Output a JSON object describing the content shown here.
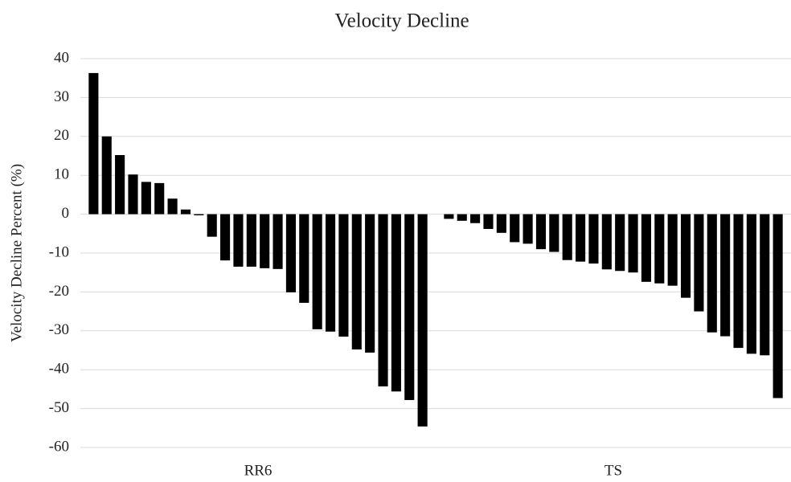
{
  "chart_data": {
    "type": "bar",
    "title": "Velocity Decline",
    "y_label": "Velocity Decline Percent (%)",
    "color": "#000000",
    "ylim": [
      -60,
      40
    ],
    "yticks": [
      -60,
      -50,
      -40,
      -30,
      -20,
      -10,
      0,
      10,
      20,
      30,
      40
    ],
    "grid": true,
    "groups": [
      {
        "name": "RR6",
        "values": [
          36.3,
          20.0,
          15.2,
          10.2,
          8.3,
          8.0,
          4.0,
          1.2,
          -0.3,
          -5.8,
          -11.9,
          -13.5,
          -13.5,
          -13.9,
          -14.1,
          -20.1,
          -22.8,
          -29.6,
          -30.2,
          -31.5,
          -34.8,
          -35.6,
          -44.3,
          -45.6,
          -47.8,
          -54.6
        ]
      },
      {
        "name": "TS",
        "values": [
          -1.2,
          -1.7,
          -2.3,
          -3.8,
          -4.8,
          -7.2,
          -7.6,
          -9.0,
          -9.7,
          -11.8,
          -12.2,
          -12.7,
          -14.2,
          -14.6,
          -15.0,
          -17.4,
          -17.8,
          -18.4,
          -21.5,
          -25.0,
          -30.4,
          -31.4,
          -34.4,
          -35.9,
          -36.3,
          -47.3
        ]
      }
    ]
  }
}
